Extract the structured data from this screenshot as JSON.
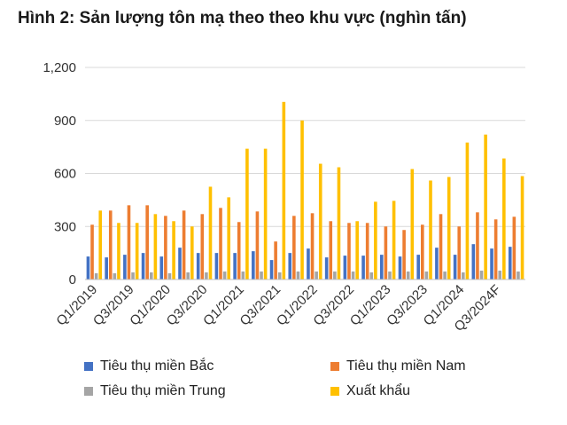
{
  "chart_data": {
    "type": "bar",
    "title": "Hình 2: Sản lượng tôn mạ theo theo khu vực (nghìn tấn)",
    "categories": [
      "Q1/2019",
      "Q2/2019",
      "Q3/2019",
      "Q4/2019",
      "Q1/2020",
      "Q2/2020",
      "Q3/2020",
      "Q4/2020",
      "Q1/2021",
      "Q2/2021",
      "Q3/2021",
      "Q4/2021",
      "Q1/2022",
      "Q2/2022",
      "Q3/2022",
      "Q4/2022",
      "Q1/2023",
      "Q2/2023",
      "Q3/2023",
      "Q4/2023",
      "Q1/2024",
      "Q2/2024",
      "Q3/2024F",
      "Q4/2024F"
    ],
    "x_tick_labels": [
      "Q1/2019",
      "Q3/2019",
      "Q1/2020",
      "Q3/2020",
      "Q1/2021",
      "Q3/2021",
      "Q1/2022",
      "Q3/2022",
      "Q1/2023",
      "Q3/2023",
      "Q1/2024",
      "Q3/2024F"
    ],
    "series": [
      {
        "name": "Tiêu thụ miền Bắc",
        "color": "#4472C4",
        "values": [
          130,
          125,
          140,
          150,
          130,
          180,
          150,
          150,
          150,
          160,
          110,
          150,
          175,
          125,
          135,
          135,
          140,
          130,
          140,
          180,
          140,
          200,
          175,
          185
        ]
      },
      {
        "name": "Tiêu thụ miền Nam",
        "color": "#ED7D31",
        "values": [
          310,
          390,
          420,
          420,
          360,
          390,
          370,
          405,
          325,
          385,
          215,
          360,
          375,
          330,
          320,
          320,
          300,
          280,
          310,
          370,
          300,
          380,
          340,
          355
        ]
      },
      {
        "name": "Tiêu thụ miền Trung",
        "color": "#A5A5A5",
        "values": [
          35,
          35,
          40,
          40,
          35,
          40,
          40,
          45,
          45,
          45,
          40,
          45,
          45,
          45,
          45,
          40,
          45,
          45,
          45,
          45,
          40,
          50,
          50,
          45
        ]
      },
      {
        "name": "Xuất khẩu",
        "color": "#FFC000",
        "values": [
          390,
          320,
          320,
          370,
          330,
          300,
          525,
          465,
          740,
          740,
          1005,
          900,
          655,
          635,
          330,
          440,
          445,
          625,
          560,
          580,
          775,
          820,
          685,
          585
        ]
      }
    ],
    "ylim": [
      0,
      1200
    ],
    "yticks": [
      0,
      300,
      600,
      900,
      1200
    ],
    "ytick_labels": [
      "0",
      "300",
      "600",
      "900",
      "1,200"
    ],
    "grid": true,
    "legend_position": "bottom"
  }
}
